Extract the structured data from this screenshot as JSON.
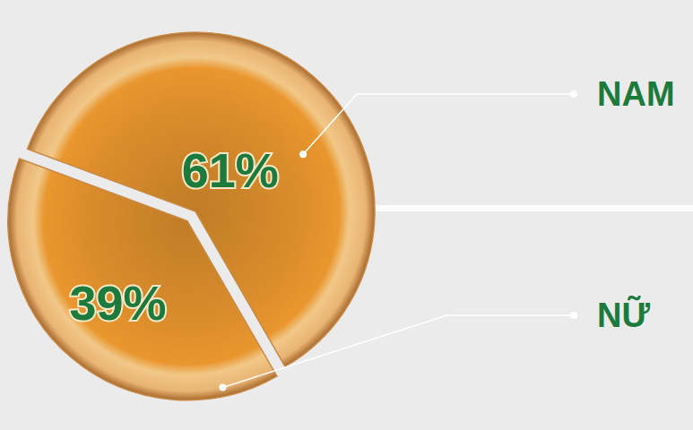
{
  "chart_data": {
    "type": "pie",
    "categories": [
      "NAM",
      "NỮ"
    ],
    "values": [
      61,
      39
    ],
    "value_labels": [
      "61%",
      "39%"
    ],
    "data_labels": true,
    "colors": [
      "#d98c2b",
      "#d98c2b"
    ],
    "legend": "right"
  }
}
